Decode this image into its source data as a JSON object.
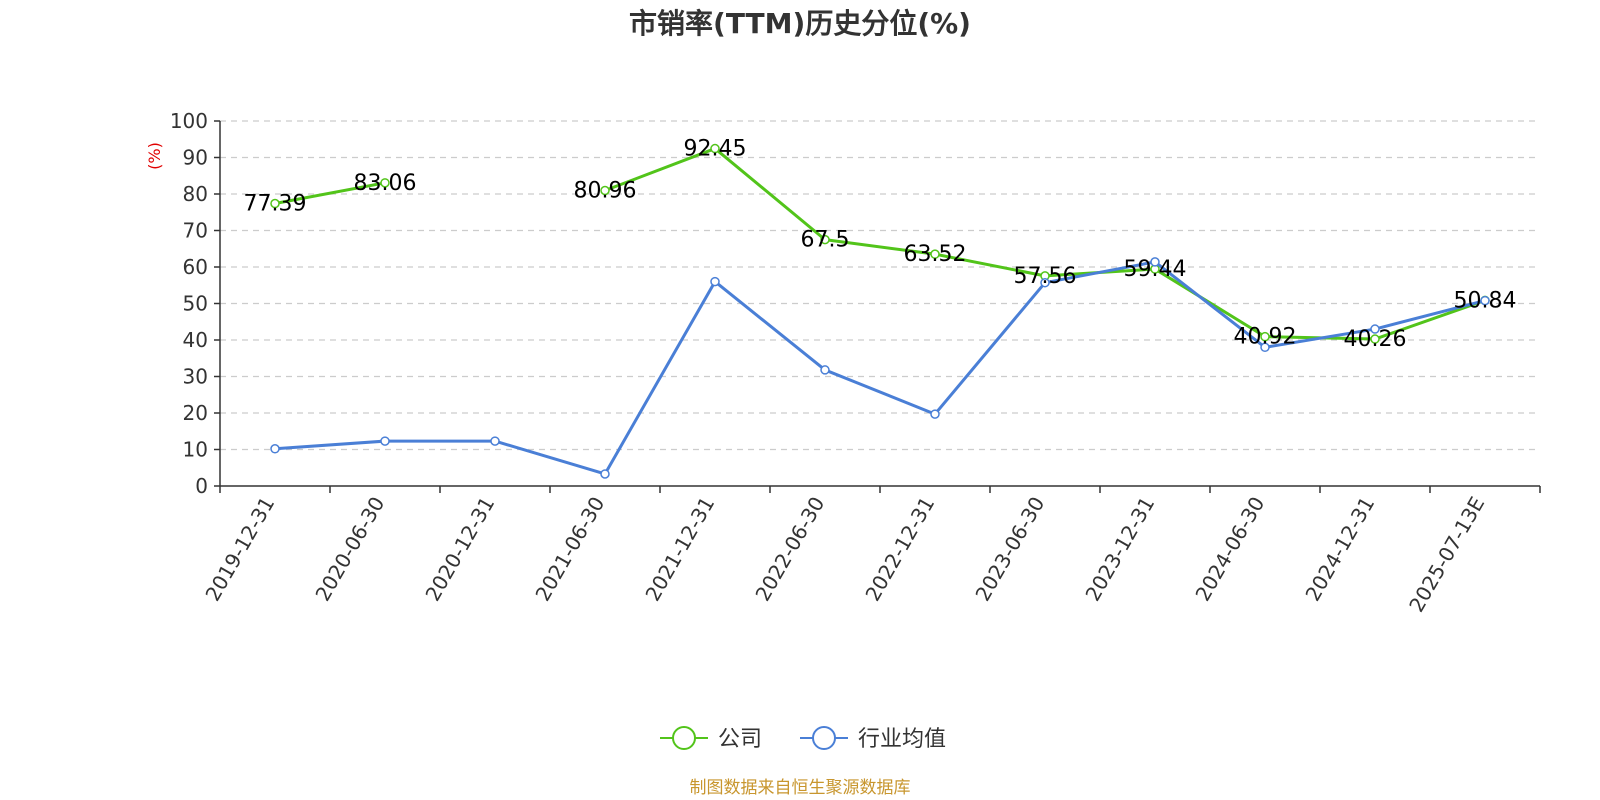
{
  "chart_data": {
    "type": "line",
    "title": "市销率(TTM)历史分位(%)",
    "ylabel": "(%)",
    "xlabel": "",
    "ylim": [
      0,
      100
    ],
    "yticks": [
      0,
      10,
      20,
      30,
      40,
      50,
      60,
      70,
      80,
      90,
      100
    ],
    "categories": [
      "2019-12-31",
      "2020-06-30",
      "2020-12-31",
      "2021-06-30",
      "2021-12-31",
      "2022-06-30",
      "2022-12-31",
      "2023-06-30",
      "2023-12-31",
      "2024-06-30",
      "2024-12-31",
      "2025-07-13E"
    ],
    "grid": true,
    "legend_position": "bottom-center",
    "series": [
      {
        "name": "公司",
        "color": "#52c41a",
        "values": [
          77.39,
          83.06,
          null,
          80.96,
          92.45,
          67.5,
          63.52,
          57.56,
          59.44,
          40.92,
          40.26,
          50.84
        ],
        "data_labels": [
          "77.39",
          "83.06",
          "",
          "80.96",
          "92.45",
          "67.5",
          "63.52",
          "57.56",
          "59.44",
          "40.92",
          "40.26",
          "50.84"
        ]
      },
      {
        "name": "行业均值",
        "color": "#4a7fd6",
        "values": [
          10.2,
          12.3,
          12.3,
          3.3,
          56.0,
          31.8,
          19.7,
          55.7,
          61.4,
          38.0,
          43.0,
          50.8
        ]
      }
    ]
  },
  "source_note": "制图数据来自恒生聚源数据库"
}
